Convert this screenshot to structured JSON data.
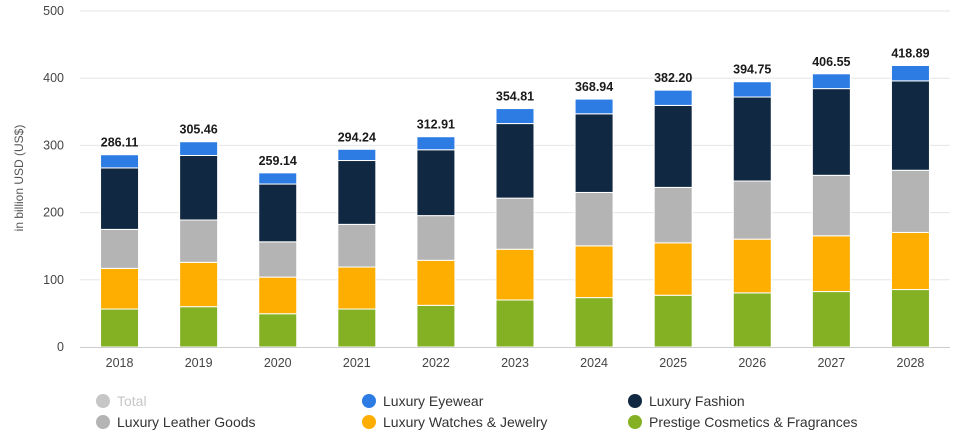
{
  "chart_data": {
    "type": "bar",
    "stacked": true,
    "ylabel": "in billion USD (US$)",
    "ylim": [
      0,
      500
    ],
    "yticks": [
      0,
      100,
      200,
      300,
      400,
      500
    ],
    "grid": true,
    "legend_position": "bottom",
    "categories": [
      "2018",
      "2019",
      "2020",
      "2021",
      "2022",
      "2023",
      "2024",
      "2025",
      "2026",
      "2027",
      "2028"
    ],
    "series": [
      {
        "name": "Prestige Cosmetics & Fragrances",
        "color": "#84b124",
        "values": [
          56.5,
          60.0,
          49.5,
          56.5,
          62.0,
          70.0,
          73.5,
          77.0,
          80.5,
          82.5,
          85.5
        ]
      },
      {
        "name": "Luxury Watches & Jewelry",
        "color": "#feae00",
        "values": [
          60.5,
          66.0,
          54.5,
          62.5,
          67.0,
          75.5,
          77.0,
          78.0,
          80.0,
          83.0,
          85.0
        ]
      },
      {
        "name": "Luxury Leather Goods",
        "color": "#b4b4b4",
        "values": [
          58.0,
          63.0,
          52.5,
          63.5,
          66.5,
          76.0,
          79.5,
          82.5,
          86.5,
          90.0,
          92.5
        ]
      },
      {
        "name": "Luxury Fashion",
        "color": "#102841",
        "values": [
          91.5,
          96.0,
          86.0,
          95.0,
          98.0,
          111.0,
          117.0,
          122.0,
          125.0,
          129.0,
          133.0
        ]
      },
      {
        "name": "Luxury Eyewear",
        "color": "#2c7ce4",
        "values": [
          19.61,
          20.46,
          16.64,
          16.74,
          19.41,
          22.31,
          21.94,
          22.7,
          22.75,
          22.05,
          22.89
        ]
      }
    ],
    "totals": [
      286.11,
      305.46,
      259.14,
      294.24,
      312.91,
      354.81,
      368.94,
      382.2,
      394.75,
      406.55,
      418.89
    ],
    "total_labels": [
      "286.11",
      "305.46",
      "259.14",
      "294.24",
      "312.91",
      "354.81",
      "368.94",
      "382.20",
      "394.75",
      "406.55",
      "418.89"
    ]
  },
  "legend": {
    "items": [
      {
        "label": "Total",
        "color": "#c6c6c6",
        "disabled": true
      },
      {
        "label": "Luxury Eyewear",
        "color": "#2c7ce4",
        "disabled": false
      },
      {
        "label": "Luxury Fashion",
        "color": "#102841",
        "disabled": false
      },
      {
        "label": "Luxury Leather Goods",
        "color": "#b4b4b4",
        "disabled": false
      },
      {
        "label": "Luxury Watches & Jewelry",
        "color": "#feae00",
        "disabled": false
      },
      {
        "label": "Prestige Cosmetics & Fragrances",
        "color": "#84b124",
        "disabled": false
      }
    ]
  }
}
